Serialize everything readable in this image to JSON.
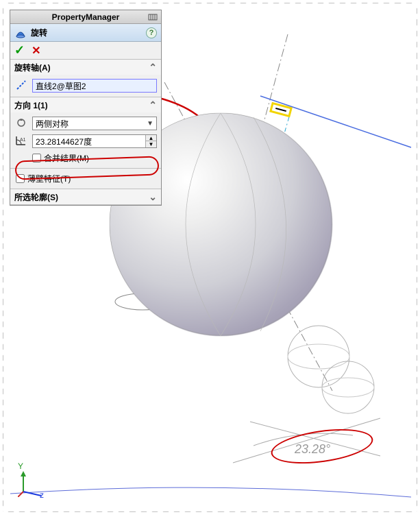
{
  "panel": {
    "header_title": "PropertyManager",
    "feature_title": "旋转",
    "ok_glyph": "✓",
    "cancel_glyph": "✕",
    "help_glyph": "?"
  },
  "sections": {
    "axis": {
      "title": "旋转轴(A)",
      "chevron": "⌃",
      "icon_color": "#1a5adf",
      "value": "直线2@草图2"
    },
    "direction": {
      "title": "方向 1(1)",
      "chevron": "⌃",
      "type_value": "两侧对称",
      "angle_value": "23.28144627度",
      "merge_label": "合并结果(M)"
    },
    "thin": {
      "title": "薄壁特征(T)",
      "checked": false
    },
    "contours": {
      "title": "所选轮廓(S)",
      "chevron": "⌄"
    }
  },
  "annotation": {
    "angle_text": "23.28°"
  },
  "viewport": {
    "bg": "#ffffff",
    "sphere_gradient_inner": "#ffffff",
    "sphere_gradient_outer": "#8e869e",
    "axis_y_label": "Y",
    "axis_z_label": "z",
    "wire_color": "#b0b0b0",
    "annotation_color": "#cc0000",
    "blue": "#1a5adf",
    "cyan": "#2aa5cf",
    "yellow": "#f2d400"
  }
}
